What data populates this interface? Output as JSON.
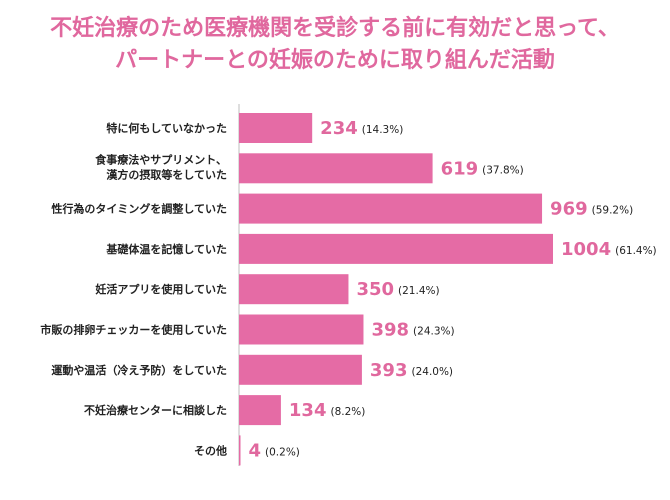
{
  "title": {
    "line1": "不妊治療のため医療機関を受診する前に有効だと思って、",
    "line2": "パートナーとの妊娠のために取り組んだ活動"
  },
  "colors": {
    "bar": "#e56ba5",
    "accent": "#e0689e",
    "axis": "#bdbdbd",
    "text": "#222222"
  },
  "chart_data": {
    "type": "bar",
    "orientation": "horizontal",
    "title": "不妊治療のため医療機関を受診する前に有効だと思って、パートナーとの妊娠のために取り組んだ活動",
    "categories": [
      [
        "特に何もしていなかった"
      ],
      [
        "食事療法やサプリメント、",
        "漢方の摂取等をしていた"
      ],
      [
        "性行為のタイミングを調整していた"
      ],
      [
        "基礎体温を記憶していた"
      ],
      [
        "妊活アプリを使用していた"
      ],
      [
        "市販の排卵チェッカーを使用していた"
      ],
      [
        "運動や温活（冷え予防）をしていた"
      ],
      [
        "不妊治療センターに相談した"
      ],
      [
        "その他"
      ]
    ],
    "values": [
      234,
      619,
      969,
      1004,
      350,
      398,
      393,
      134,
      4
    ],
    "percent_labels": [
      "(14.3%)",
      "(37.8%)",
      "(59.2%)",
      "(61.4%)",
      "(21.4%)",
      "(24.3%)",
      "(24.0%)",
      "(8.2%)",
      "(0.2%)"
    ],
    "xlim": [
      0,
      1004
    ],
    "grid": false,
    "legend": "none"
  }
}
